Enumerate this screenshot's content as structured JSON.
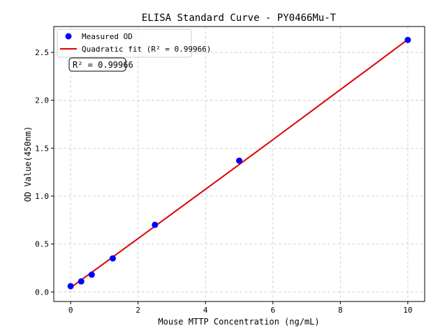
{
  "chart_data": {
    "type": "scatter",
    "title": "ELISA Standard Curve - PY0466Mu-T",
    "xlabel": "Mouse MTTP Concentration (ng/mL)",
    "ylabel": "OD Value(450nm)",
    "xlim": [
      -0.5,
      10.5
    ],
    "ylim": [
      -0.1,
      2.77
    ],
    "xticks": [
      0,
      2,
      4,
      6,
      8,
      10
    ],
    "yticks": [
      0.0,
      0.5,
      1.0,
      1.5,
      2.0,
      2.5
    ],
    "ytick_labels": [
      "0.0",
      "0.5",
      "1.0",
      "1.5",
      "2.0",
      "2.5"
    ],
    "grid": true,
    "legend_position": "top-left",
    "series": [
      {
        "name": "Measured OD",
        "kind": "scatter",
        "color": "#0000ff",
        "x": [
          0,
          0.3125,
          0.625,
          1.25,
          2.5,
          5,
          10
        ],
        "y": [
          0.06,
          0.11,
          0.18,
          0.35,
          0.7,
          1.37,
          2.63
        ]
      },
      {
        "name": "Quadratic fit (R² = 0.99966)",
        "kind": "line",
        "color": "#dd0000",
        "x": [
          0,
          1,
          2,
          3,
          4,
          5,
          6,
          7,
          8,
          9,
          10
        ],
        "y": [
          0.045,
          0.3,
          0.557,
          0.814,
          1.071,
          1.33,
          1.589,
          1.85,
          2.111,
          2.372,
          2.635
        ]
      }
    ],
    "annotation": "R² = 0.99966"
  }
}
